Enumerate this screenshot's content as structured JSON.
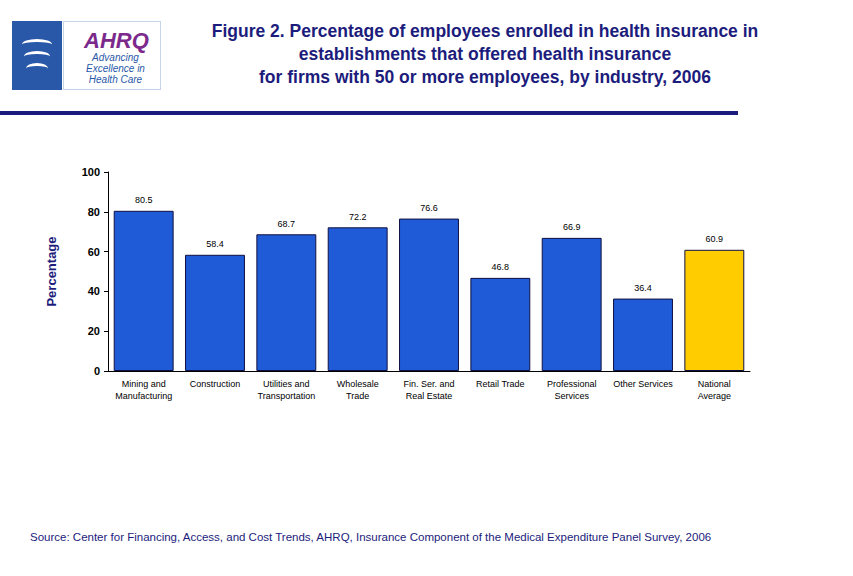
{
  "chart_data": {
    "type": "bar",
    "title": "Figure 2. Percentage of employees enrolled in health insurance in\nestablishments that offered health insurance\nfor firms with 50 or more employees, by industry, 2006",
    "y_label": "Percentage",
    "source": "Source: Center for Financing, Access, and Cost Trends, AHRQ, Insurance Component of the Medical Expenditure Panel Survey, 2006",
    "logo": {
      "name": "AHRQ",
      "tagline": "Advancing\nExcellence in\nHealth Care"
    },
    "categories": [
      "Mining and\nManufacturing",
      "Construction",
      "Utilities and\nTransportation",
      "Wholesale\nTrade",
      "Fin. Ser. and\nReal Estate",
      "Retail Trade",
      "Professional\nServices",
      "Other Services",
      "National\nAverage"
    ],
    "values": [
      80.5,
      58.4,
      68.7,
      72.2,
      76.6,
      46.8,
      66.9,
      36.4,
      60.9
    ],
    "colors": [
      "#1f5bd6",
      "#1f5bd6",
      "#1f5bd6",
      "#1f5bd6",
      "#1f5bd6",
      "#1f5bd6",
      "#1f5bd6",
      "#1f5bd6",
      "#ffcc00"
    ],
    "ylim": [
      0,
      100
    ],
    "yticks": [
      0,
      20,
      40,
      60,
      80,
      100
    ],
    "grid": false,
    "data_labels": true
  }
}
